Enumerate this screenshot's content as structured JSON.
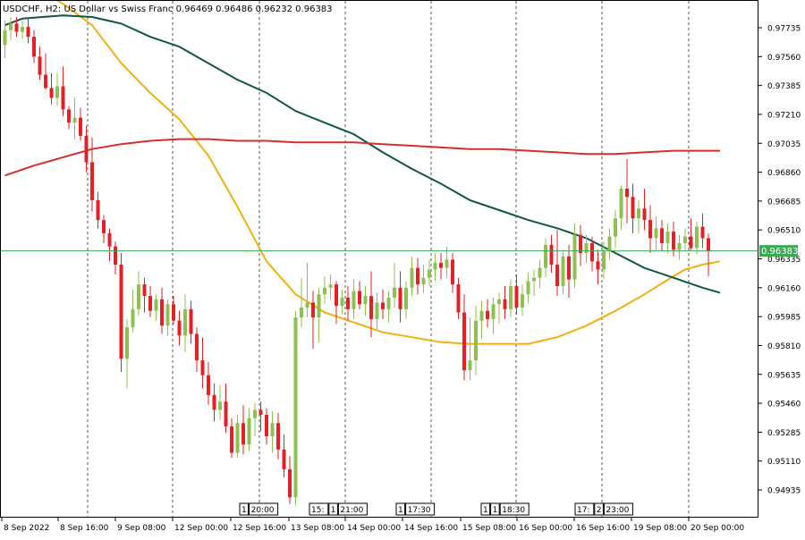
{
  "header": {
    "symbol": "USDCHF",
    "timeframe": "H2",
    "description": "US Dollar vs Swiss Franc",
    "ohlc": "0.96469 0.96486 0.96232 0.96383"
  },
  "current_price": {
    "value": 0.96383,
    "label": "0.96383"
  },
  "colors": {
    "bull": "#8cc152",
    "bear": "#e41f25",
    "ma_fast": "#f2b010",
    "ma_mid": "#0f5746",
    "ma_slow": "#d62d2d",
    "price_line": "#3ca853",
    "axis": "#000000",
    "grid": "#555555"
  },
  "time_axis_labels": [
    "8 Sep 2022",
    "8 Sep 16:00",
    "9 Sep 08:00",
    "12 Sep 00:00",
    "12 Sep 16:00",
    "13 Sep 08:00",
    "14 Sep 00:00",
    "14 Sep 16:00",
    "15 Sep 08:00",
    "16 Sep 00:00",
    "16 Sep 16:00",
    "19 Sep 08:00",
    "20 Sep 00:00"
  ],
  "event_markers": [
    {
      "labels": [
        "1",
        "20:00"
      ]
    },
    {
      "labels": [
        "15:",
        "1",
        "21:00"
      ]
    },
    {
      "labels": [
        "1",
        "17:30"
      ]
    },
    {
      "labels": [
        "1",
        "1",
        "18:30"
      ]
    },
    {
      "labels": [
        "17:",
        "2",
        "23:00"
      ]
    }
  ],
  "chart_data": {
    "type": "candlestick",
    "symbol": "USDCHF",
    "timeframe": "H2",
    "ylim": [
      0.9484,
      0.9782
    ],
    "y_ticks": [
      0.97735,
      0.9756,
      0.97385,
      0.9721,
      0.97035,
      0.9686,
      0.96685,
      0.9651,
      0.96335,
      0.9616,
      0.95985,
      0.9581,
      0.95635,
      0.9546,
      0.95285,
      0.9511,
      0.94935
    ],
    "y_tick_labels": [
      "0.97735",
      "0.97560",
      "0.97385",
      "0.97210",
      "0.97035",
      "0.96860",
      "0.96685",
      "0.96510",
      "0.96335",
      "0.96160",
      "0.95985",
      "0.95810",
      "0.95635",
      "0.95460",
      "0.95285",
      "0.95110",
      "0.94935"
    ],
    "ohlc": [
      [
        0.9763,
        0.9778,
        0.9755,
        0.9772
      ],
      [
        0.9772,
        0.978,
        0.9766,
        0.9776
      ],
      [
        0.9776,
        0.978,
        0.9768,
        0.9771
      ],
      [
        0.9771,
        0.9778,
        0.9767,
        0.9774
      ],
      [
        0.9774,
        0.9779,
        0.9764,
        0.9768
      ],
      [
        0.9768,
        0.9772,
        0.9752,
        0.9756
      ],
      [
        0.9756,
        0.9762,
        0.9742,
        0.9745
      ],
      [
        0.9745,
        0.9758,
        0.9736,
        0.9737
      ],
      [
        0.9737,
        0.9746,
        0.9727,
        0.9731
      ],
      [
        0.9731,
        0.9746,
        0.9726,
        0.9738
      ],
      [
        0.9738,
        0.975,
        0.972,
        0.9724
      ],
      [
        0.9724,
        0.9726,
        0.9712,
        0.9716
      ],
      [
        0.9716,
        0.9731,
        0.9706,
        0.9719
      ],
      [
        0.9719,
        0.9725,
        0.9705,
        0.9708
      ],
      [
        0.9708,
        0.9714,
        0.9686,
        0.9692
      ],
      [
        0.9692,
        0.9707,
        0.9662,
        0.9669
      ],
      [
        0.9669,
        0.9674,
        0.9652,
        0.9657
      ],
      [
        0.9657,
        0.966,
        0.9643,
        0.9649
      ],
      [
        0.9649,
        0.9652,
        0.9632,
        0.9641
      ],
      [
        0.9641,
        0.9644,
        0.9624,
        0.963
      ],
      [
        0.963,
        0.9637,
        0.9565,
        0.9573
      ],
      [
        0.9573,
        0.9597,
        0.9555,
        0.9592
      ],
      [
        0.9592,
        0.9615,
        0.9589,
        0.9603
      ],
      [
        0.9603,
        0.9626,
        0.9599,
        0.9618
      ],
      [
        0.9618,
        0.9622,
        0.9601,
        0.9611
      ],
      [
        0.9611,
        0.9617,
        0.9598,
        0.9602
      ],
      [
        0.9602,
        0.9612,
        0.9596,
        0.9609
      ],
      [
        0.9609,
        0.9616,
        0.9588,
        0.9593
      ],
      [
        0.9593,
        0.9609,
        0.9587,
        0.9606
      ],
      [
        0.9606,
        0.9611,
        0.9594,
        0.9596
      ],
      [
        0.9596,
        0.9602,
        0.9581,
        0.9587
      ],
      [
        0.9587,
        0.9612,
        0.9577,
        0.9603
      ],
      [
        0.9603,
        0.9608,
        0.9582,
        0.9588
      ],
      [
        0.9588,
        0.9592,
        0.9565,
        0.9572
      ],
      [
        0.9572,
        0.9586,
        0.9555,
        0.9563
      ],
      [
        0.9563,
        0.9571,
        0.9545,
        0.9551
      ],
      [
        0.9551,
        0.9558,
        0.9535,
        0.9542
      ],
      [
        0.9542,
        0.9557,
        0.9536,
        0.9547
      ],
      [
        0.9547,
        0.9558,
        0.9528,
        0.9532
      ],
      [
        0.9532,
        0.9537,
        0.9513,
        0.9516
      ],
      [
        0.9516,
        0.9539,
        0.9513,
        0.9534
      ],
      [
        0.9534,
        0.9545,
        0.9515,
        0.9521
      ],
      [
        0.9521,
        0.9543,
        0.9517,
        0.9537
      ],
      [
        0.9537,
        0.9546,
        0.9526,
        0.9542
      ],
      [
        0.9542,
        0.9547,
        0.9529,
        0.9539
      ],
      [
        0.9539,
        0.9543,
        0.9521,
        0.9526
      ],
      [
        0.9526,
        0.9541,
        0.9516,
        0.9534
      ],
      [
        0.9534,
        0.954,
        0.9512,
        0.9518
      ],
      [
        0.9518,
        0.9527,
        0.9501,
        0.9506
      ],
      [
        0.9506,
        0.9514,
        0.9485,
        0.9489
      ],
      [
        0.9489,
        0.9602,
        0.9484,
        0.9598
      ],
      [
        0.9598,
        0.9622,
        0.9592,
        0.9604
      ],
      [
        0.9604,
        0.9631,
        0.9598,
        0.9607
      ],
      [
        0.9607,
        0.9614,
        0.9579,
        0.9598
      ],
      [
        0.9598,
        0.9616,
        0.9583,
        0.9612
      ],
      [
        0.9612,
        0.9623,
        0.9606,
        0.9616
      ],
      [
        0.9616,
        0.9624,
        0.9609,
        0.9618
      ],
      [
        0.9618,
        0.962,
        0.9594,
        0.9605
      ],
      [
        0.9605,
        0.9615,
        0.96,
        0.961
      ],
      [
        0.961,
        0.9617,
        0.9596,
        0.9603
      ],
      [
        0.9603,
        0.9621,
        0.9597,
        0.9614
      ],
      [
        0.9614,
        0.962,
        0.9603,
        0.9606
      ],
      [
        0.9606,
        0.9617,
        0.9599,
        0.9611
      ],
      [
        0.9611,
        0.9626,
        0.9586,
        0.9597
      ],
      [
        0.9597,
        0.9613,
        0.9591,
        0.9607
      ],
      [
        0.9607,
        0.9615,
        0.9597,
        0.9603
      ],
      [
        0.9603,
        0.9614,
        0.9595,
        0.961
      ],
      [
        0.961,
        0.9631,
        0.9604,
        0.9616
      ],
      [
        0.9616,
        0.9626,
        0.9595,
        0.9603
      ],
      [
        0.9603,
        0.962,
        0.9597,
        0.9616
      ],
      [
        0.9616,
        0.9635,
        0.9611,
        0.9628
      ],
      [
        0.9628,
        0.9634,
        0.9612,
        0.9618
      ],
      [
        0.9618,
        0.963,
        0.9613,
        0.9622
      ],
      [
        0.9622,
        0.9633,
        0.9617,
        0.9627
      ],
      [
        0.9627,
        0.9637,
        0.962,
        0.9631
      ],
      [
        0.9631,
        0.9637,
        0.9621,
        0.9628
      ],
      [
        0.9628,
        0.9641,
        0.9622,
        0.9633
      ],
      [
        0.9633,
        0.9637,
        0.9613,
        0.9618
      ],
      [
        0.9618,
        0.9622,
        0.9597,
        0.9601
      ],
      [
        0.9601,
        0.9612,
        0.956,
        0.9566
      ],
      [
        0.9566,
        0.9598,
        0.956,
        0.9572
      ],
      [
        0.9572,
        0.9605,
        0.9563,
        0.9596
      ],
      [
        0.9596,
        0.9608,
        0.9585,
        0.9602
      ],
      [
        0.9602,
        0.9609,
        0.9592,
        0.9597
      ],
      [
        0.9597,
        0.961,
        0.9588,
        0.9606
      ],
      [
        0.9606,
        0.9613,
        0.9594,
        0.9609
      ],
      [
        0.9609,
        0.9617,
        0.9597,
        0.9603
      ],
      [
        0.9603,
        0.9621,
        0.9598,
        0.9617
      ],
      [
        0.9617,
        0.9624,
        0.96,
        0.9604
      ],
      [
        0.9604,
        0.9618,
        0.9599,
        0.9612
      ],
      [
        0.9612,
        0.9625,
        0.9607,
        0.962
      ],
      [
        0.962,
        0.9627,
        0.9611,
        0.9622
      ],
      [
        0.9622,
        0.9633,
        0.9616,
        0.9628
      ],
      [
        0.9628,
        0.9646,
        0.9622,
        0.9642
      ],
      [
        0.9642,
        0.9648,
        0.9625,
        0.963
      ],
      [
        0.963,
        0.9651,
        0.9611,
        0.9617
      ],
      [
        0.9617,
        0.9639,
        0.9612,
        0.9635
      ],
      [
        0.9635,
        0.9642,
        0.961,
        0.9621
      ],
      [
        0.9621,
        0.9655,
        0.9616,
        0.9648
      ],
      [
        0.9648,
        0.9654,
        0.9629,
        0.9637
      ],
      [
        0.9637,
        0.9648,
        0.9631,
        0.9643
      ],
      [
        0.9643,
        0.9647,
        0.9626,
        0.9632
      ],
      [
        0.9632,
        0.9639,
        0.9618,
        0.9627
      ],
      [
        0.9627,
        0.9644,
        0.9621,
        0.9638
      ],
      [
        0.9638,
        0.9652,
        0.9633,
        0.9647
      ],
      [
        0.9647,
        0.9663,
        0.964,
        0.9658
      ],
      [
        0.9658,
        0.9678,
        0.9651,
        0.9676
      ],
      [
        0.9676,
        0.9694,
        0.9655,
        0.9671
      ],
      [
        0.9671,
        0.9679,
        0.9649,
        0.9658
      ],
      [
        0.9658,
        0.9669,
        0.9649,
        0.9664
      ],
      [
        0.9664,
        0.9676,
        0.9651,
        0.9657
      ],
      [
        0.9657,
        0.9666,
        0.9637,
        0.9646
      ],
      [
        0.9646,
        0.9659,
        0.9639,
        0.9652
      ],
      [
        0.9652,
        0.9657,
        0.9638,
        0.9643
      ],
      [
        0.9643,
        0.9655,
        0.9637,
        0.965
      ],
      [
        0.965,
        0.9656,
        0.9635,
        0.9639
      ],
      [
        0.9639,
        0.9648,
        0.9633,
        0.9643
      ],
      [
        0.9643,
        0.9652,
        0.9638,
        0.9647
      ],
      [
        0.9647,
        0.9658,
        0.9639,
        0.964
      ],
      [
        0.964,
        0.9656,
        0.9636,
        0.9653
      ],
      [
        0.9653,
        0.9661,
        0.964,
        0.9646
      ],
      [
        0.9646,
        0.9649,
        0.9623,
        0.9638
      ]
    ],
    "moving_averages": [
      {
        "color": "#f2b010",
        "points": [
          [
            0,
            0.9808
          ],
          [
            10,
            0.9788
          ],
          [
            15,
            0.9775
          ],
          [
            20,
            0.9752
          ],
          [
            25,
            0.9734
          ],
          [
            30,
            0.9718
          ],
          [
            35,
            0.9696
          ],
          [
            40,
            0.9665
          ],
          [
            45,
            0.9632
          ],
          [
            50,
            0.9612
          ],
          [
            55,
            0.9601
          ],
          [
            60,
            0.9595
          ],
          [
            65,
            0.9589
          ],
          [
            70,
            0.9586
          ],
          [
            75,
            0.9583
          ],
          [
            80,
            0.9582
          ],
          [
            85,
            0.9582
          ],
          [
            90,
            0.9582
          ],
          [
            95,
            0.9586
          ],
          [
            100,
            0.9593
          ],
          [
            105,
            0.9602
          ],
          [
            110,
            0.9612
          ],
          [
            115,
            0.9623
          ],
          [
            117,
            0.9627
          ],
          [
            120,
            0.963
          ],
          [
            123,
            0.9632
          ]
        ]
      },
      {
        "color": "#0f5746",
        "points": [
          [
            0,
            0.9775
          ],
          [
            3,
            0.9779
          ],
          [
            10,
            0.9781
          ],
          [
            15,
            0.978
          ],
          [
            20,
            0.9776
          ],
          [
            25,
            0.9768
          ],
          [
            30,
            0.9762
          ],
          [
            35,
            0.9752
          ],
          [
            40,
            0.9742
          ],
          [
            45,
            0.9734
          ],
          [
            50,
            0.9723
          ],
          [
            55,
            0.9716
          ],
          [
            60,
            0.9709
          ],
          [
            65,
            0.9698
          ],
          [
            70,
            0.9688
          ],
          [
            75,
            0.9679
          ],
          [
            80,
            0.9669
          ],
          [
            85,
            0.9663
          ],
          [
            90,
            0.9657
          ],
          [
            95,
            0.9652
          ],
          [
            100,
            0.9646
          ],
          [
            105,
            0.9637
          ],
          [
            110,
            0.9628
          ],
          [
            115,
            0.9622
          ],
          [
            120,
            0.9616
          ],
          [
            123,
            0.9613
          ]
        ]
      },
      {
        "color": "#d62d2d",
        "points": [
          [
            0,
            0.9684
          ],
          [
            5,
            0.969
          ],
          [
            10,
            0.9695
          ],
          [
            15,
            0.97
          ],
          [
            20,
            0.9703
          ],
          [
            25,
            0.9705
          ],
          [
            30,
            0.9706
          ],
          [
            35,
            0.9706
          ],
          [
            40,
            0.9705
          ],
          [
            45,
            0.9705
          ],
          [
            50,
            0.9704
          ],
          [
            55,
            0.9704
          ],
          [
            60,
            0.9704
          ],
          [
            65,
            0.9703
          ],
          [
            70,
            0.9702
          ],
          [
            75,
            0.9701
          ],
          [
            80,
            0.97
          ],
          [
            85,
            0.97
          ],
          [
            90,
            0.9699
          ],
          [
            95,
            0.9698
          ],
          [
            100,
            0.9697
          ],
          [
            105,
            0.9697
          ],
          [
            110,
            0.9698
          ],
          [
            115,
            0.9699
          ],
          [
            120,
            0.9699
          ],
          [
            123,
            0.9699
          ]
        ]
      }
    ],
    "current_price": 0.96383
  }
}
